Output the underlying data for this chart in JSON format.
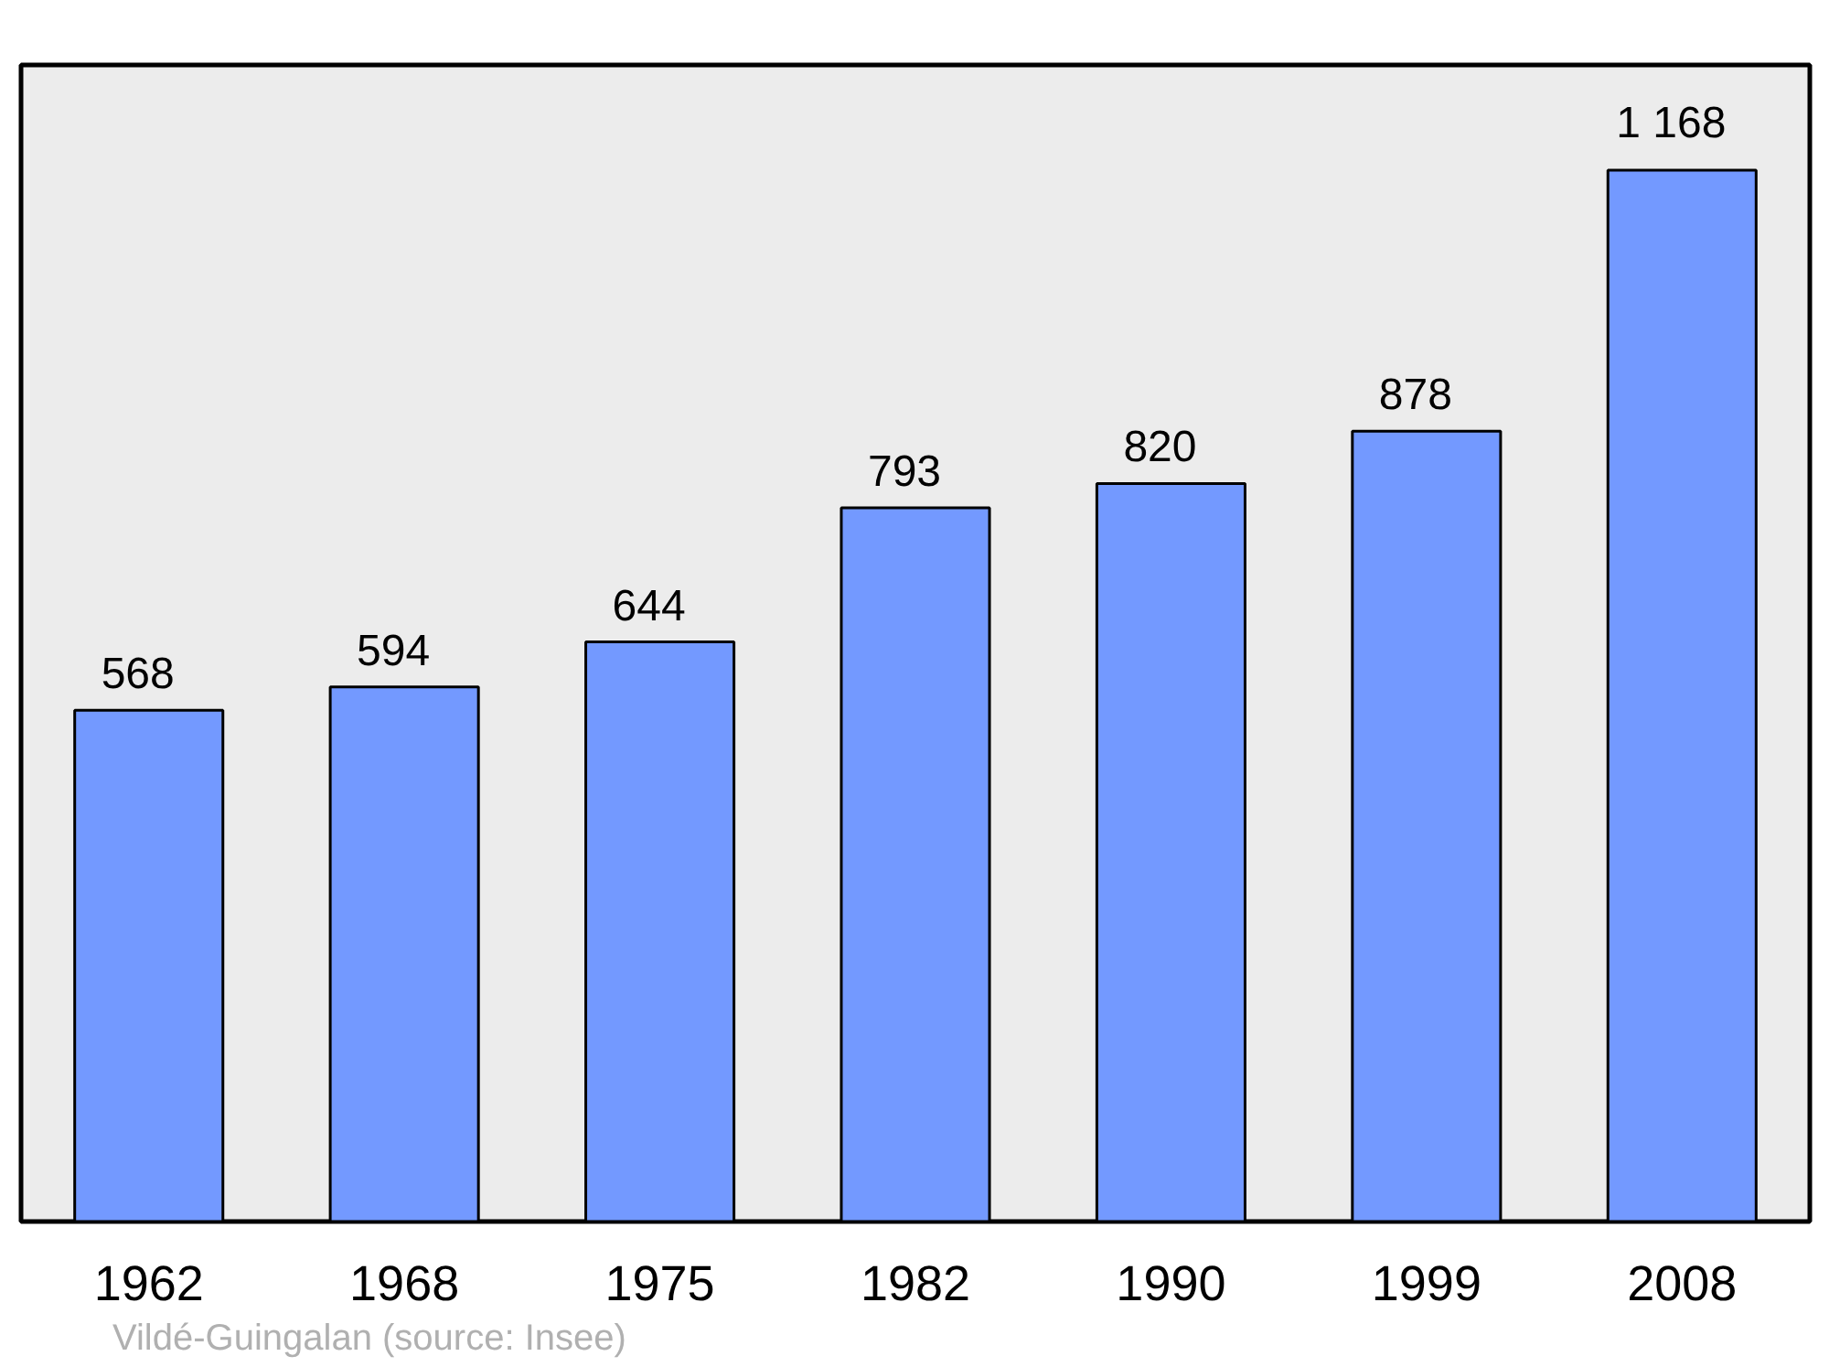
{
  "chart_data": {
    "type": "bar",
    "categories": [
      "1962",
      "1968",
      "1975",
      "1982",
      "1990",
      "1999",
      "2008"
    ],
    "values": [
      568,
      594,
      644,
      793,
      820,
      878,
      1168
    ],
    "value_labels": [
      "568",
      "594",
      "644",
      "793",
      "820",
      "878",
      "1 168"
    ],
    "color": "#7399ff",
    "ylim": [
      0,
      1285
    ],
    "tick_labels": "x",
    "grid": false,
    "annotations": [
      "Vildé-Guingalan    (source: Insee)"
    ]
  }
}
